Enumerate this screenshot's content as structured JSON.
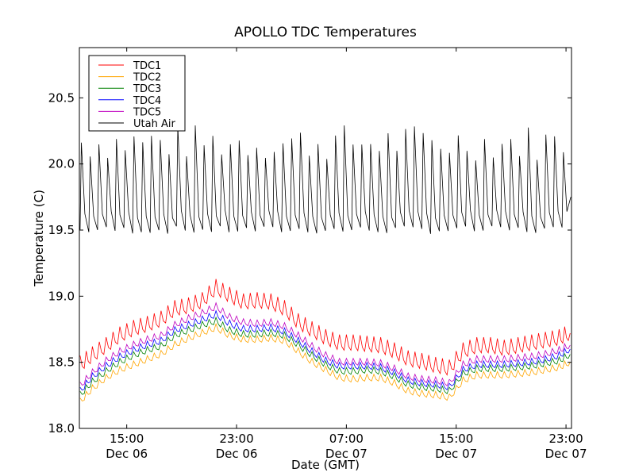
{
  "chart_data": {
    "type": "line",
    "title": "APOLLO TDC Temperatures",
    "xlabel": "Date (GMT)",
    "ylabel": "Temperature (C)",
    "ylim": [
      18.0,
      20.88
    ],
    "xlim_hours": [
      11.55,
      47.4
    ],
    "x_unit": "hours since 00:00 Dec 06 (GMT)",
    "yticks": [
      18.0,
      18.5,
      19.0,
      19.5,
      20.0,
      20.5
    ],
    "ytick_labels": [
      "18.0",
      "18.5",
      "19.0",
      "19.5",
      "20.0",
      "20.5"
    ],
    "xticks": [
      {
        "hours": 15,
        "line1": "15:00",
        "line2": "Dec 06"
      },
      {
        "hours": 23,
        "line1": "23:00",
        "line2": "Dec 06"
      },
      {
        "hours": 31,
        "line1": "07:00",
        "line2": "Dec 07"
      },
      {
        "hours": 39,
        "line1": "15:00",
        "line2": "Dec 07"
      },
      {
        "hours": 47,
        "line1": "23:00",
        "line2": "Dec 07"
      }
    ],
    "grid": false,
    "legend_position": "top-left",
    "x": [
      11.6,
      12.5,
      13.5,
      14.5,
      15.5,
      16.5,
      17.5,
      18.5,
      19.5,
      20.5,
      21.5,
      22.5,
      23.5,
      24.5,
      25.5,
      26.5,
      27.5,
      28.5,
      29.5,
      30.5,
      31.5,
      32.5,
      33.5,
      34.5,
      35.5,
      36.5,
      37.5,
      38.5,
      39.5,
      40.5,
      41.5,
      42.5,
      43.5,
      44.5,
      45.5,
      46.5,
      47.3
    ],
    "series": [
      {
        "name": "TDC1",
        "color": "#ff0000",
        "values": [
          18.48,
          18.55,
          18.62,
          18.7,
          18.75,
          18.78,
          18.82,
          18.9,
          18.92,
          18.96,
          19.06,
          19.0,
          18.95,
          18.96,
          18.95,
          18.9,
          18.8,
          18.74,
          18.68,
          18.64,
          18.64,
          18.63,
          18.62,
          18.58,
          18.52,
          18.5,
          18.47,
          18.45,
          18.58,
          18.62,
          18.62,
          18.6,
          18.62,
          18.64,
          18.66,
          18.68,
          18.72
        ]
      },
      {
        "name": "TDC2",
        "color": "#ffa500",
        "values": [
          18.2,
          18.3,
          18.38,
          18.44,
          18.48,
          18.52,
          18.56,
          18.63,
          18.68,
          18.72,
          18.76,
          18.7,
          18.67,
          18.67,
          18.68,
          18.66,
          18.58,
          18.5,
          18.44,
          18.38,
          18.37,
          18.38,
          18.38,
          18.34,
          18.28,
          18.26,
          18.25,
          18.23,
          18.36,
          18.4,
          18.4,
          18.4,
          18.41,
          18.42,
          18.44,
          18.46,
          18.5
        ]
      },
      {
        "name": "TDC3",
        "color": "#008000",
        "values": [
          18.25,
          18.35,
          18.43,
          18.5,
          18.55,
          18.59,
          18.62,
          18.7,
          18.74,
          18.78,
          18.81,
          18.74,
          18.71,
          18.71,
          18.72,
          18.7,
          18.63,
          18.55,
          18.48,
          18.43,
          18.43,
          18.44,
          18.43,
          18.39,
          18.33,
          18.31,
          18.3,
          18.28,
          18.41,
          18.45,
          18.45,
          18.45,
          18.46,
          18.47,
          18.49,
          18.51,
          18.56
        ]
      },
      {
        "name": "TDC4",
        "color": "#0000ff",
        "values": [
          18.28,
          18.39,
          18.47,
          18.54,
          18.59,
          18.63,
          18.66,
          18.74,
          18.78,
          18.82,
          18.86,
          18.79,
          18.75,
          18.75,
          18.76,
          18.73,
          18.66,
          18.58,
          18.51,
          18.47,
          18.47,
          18.47,
          18.46,
          18.42,
          18.36,
          18.34,
          18.33,
          18.31,
          18.44,
          18.48,
          18.48,
          18.48,
          18.49,
          18.5,
          18.52,
          18.55,
          18.6
        ]
      },
      {
        "name": "TDC5",
        "color": "#bf00bf",
        "values": [
          18.32,
          18.42,
          18.51,
          18.58,
          18.63,
          18.67,
          18.7,
          18.78,
          18.83,
          18.87,
          18.92,
          18.84,
          18.8,
          18.79,
          18.8,
          18.77,
          18.7,
          18.62,
          18.55,
          18.5,
          18.5,
          18.5,
          18.49,
          18.45,
          18.39,
          18.37,
          18.36,
          18.34,
          18.48,
          18.52,
          18.52,
          18.52,
          18.53,
          18.54,
          18.56,
          18.59,
          18.63
        ]
      },
      {
        "name": "Utah Air",
        "color": "#000000",
        "oscillating": true,
        "min": 19.43,
        "max": 20.36,
        "cycles": 56,
        "typical_trough": 19.5,
        "typical_peak": 20.15
      }
    ]
  },
  "legend": {
    "items": [
      {
        "label": "TDC1",
        "color": "#ff0000"
      },
      {
        "label": "TDC2",
        "color": "#ffa500"
      },
      {
        "label": "TDC3",
        "color": "#008000"
      },
      {
        "label": "TDC4",
        "color": "#0000ff"
      },
      {
        "label": "TDC5",
        "color": "#bf00bf"
      },
      {
        "label": "Utah Air",
        "color": "#000000"
      }
    ]
  }
}
